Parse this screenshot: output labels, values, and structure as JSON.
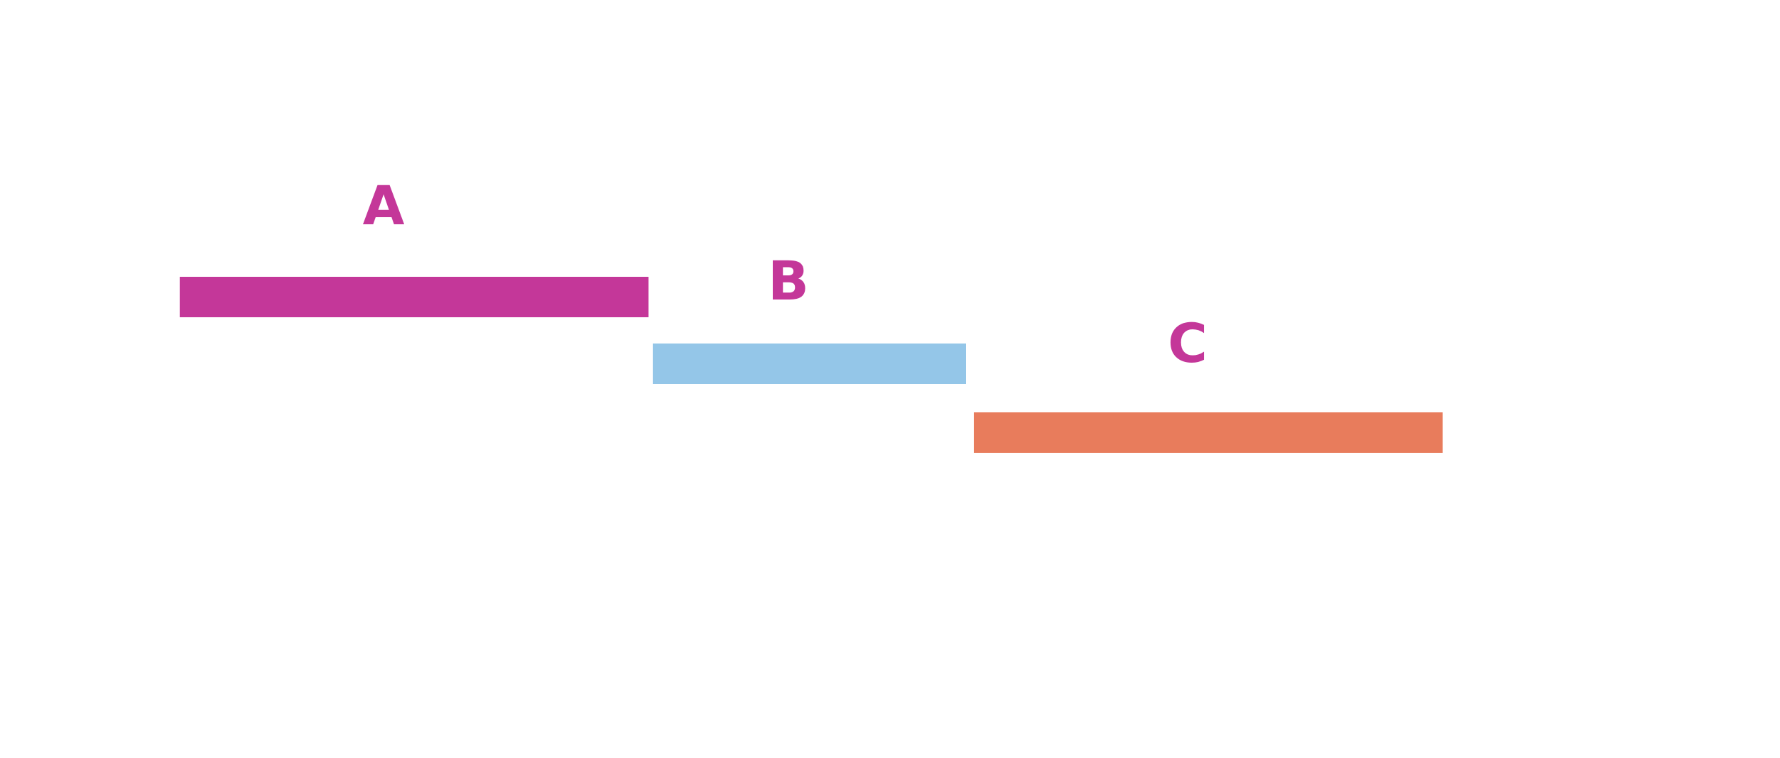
{
  "segments": [
    {
      "label": "A",
      "color": "#c43799",
      "label_color": "#c43799"
    },
    {
      "label": "B",
      "color": "#94c6e8",
      "label_color": "#c43799"
    },
    {
      "label": "C",
      "color": "#e87c5c",
      "label_color": "#c43799"
    }
  ]
}
